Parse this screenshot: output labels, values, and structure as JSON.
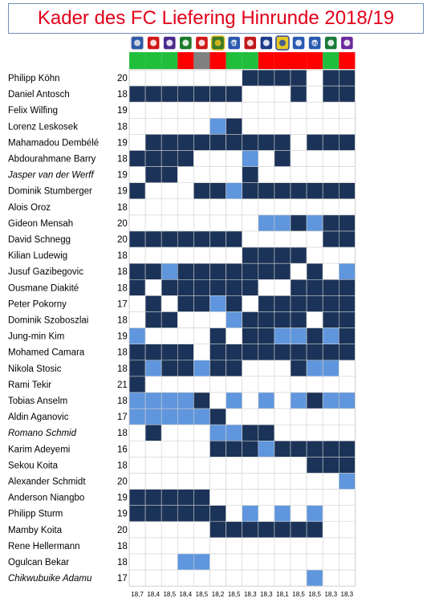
{
  "chart_data": {
    "type": "heatmap",
    "title": "Kader des FC Liefering Hinrunde 2018/19",
    "colors": {
      "played_full": "#1b3358",
      "played_partial": "#5f96dd",
      "not_played": "#ffffff",
      "win": "#1fbf3c",
      "loss": "#ff0000",
      "draw": "#808080"
    },
    "matches": [
      {
        "date": "18,7",
        "result": "win",
        "badge_colors": [
          "#2d5aa8",
          "#e8e8e8"
        ],
        "badge_text": ""
      },
      {
        "date": "18,4",
        "result": "win",
        "badge_colors": [
          "#d01818",
          "#ffffff"
        ],
        "badge_text": ""
      },
      {
        "date": "18,5",
        "result": "win",
        "badge_colors": [
          "#4a2a8c",
          "#ffffff"
        ],
        "badge_text": ""
      },
      {
        "date": "18,4",
        "result": "loss",
        "badge_colors": [
          "#1a7a2a",
          "#ffffff"
        ],
        "badge_text": ""
      },
      {
        "date": "18,5",
        "result": "draw",
        "badge_colors": [
          "#d01818",
          "#ffffff"
        ],
        "badge_text": ""
      },
      {
        "date": "18,2",
        "result": "loss",
        "badge_colors": [
          "#3a7a2a",
          "#e8c020"
        ],
        "badge_text": ""
      },
      {
        "date": "18,5",
        "result": "win",
        "badge_colors": [
          "#2a5ab0",
          "#ffffff"
        ],
        "badge_text": "SKN"
      },
      {
        "date": "18,3",
        "result": "win",
        "badge_colors": [
          "#c01818",
          "#ffffff"
        ],
        "badge_text": ""
      },
      {
        "date": "18,3",
        "result": "loss",
        "badge_colors": [
          "#1a3a8a",
          "#ffffff"
        ],
        "badge_text": ""
      },
      {
        "date": "18,1",
        "result": "loss",
        "badge_colors": [
          "#e8c820",
          "#2a4aa0"
        ],
        "badge_text": ""
      },
      {
        "date": "18,5",
        "result": "loss",
        "badge_colors": [
          "#2a5ab0",
          "#ffffff"
        ],
        "badge_text": ""
      },
      {
        "date": "18,5",
        "result": "loss",
        "badge_colors": [
          "#2a5ab0",
          "#ffffff"
        ],
        "badge_text": "FAC"
      },
      {
        "date": "18,3",
        "result": "win",
        "badge_colors": [
          "#1a7a3a",
          "#ffffff"
        ],
        "badge_text": ""
      },
      {
        "date": "18,3",
        "result": "loss",
        "badge_colors": [
          "#6a2a9c",
          "#ffffff"
        ],
        "badge_text": ""
      }
    ],
    "players": [
      {
        "name": "Philipp Köhn",
        "italic": false,
        "age": 20,
        "cells": "00000002222022"
      },
      {
        "name": "Daniel Antosch",
        "italic": false,
        "age": 18,
        "cells": "22222220002022"
      },
      {
        "name": "Felix Wilfing",
        "italic": false,
        "age": 19,
        "cells": "00000000000000"
      },
      {
        "name": "Lorenz Leskosek",
        "italic": false,
        "age": 18,
        "cells": "00000120000000"
      },
      {
        "name": "Mahamadou Dembélé",
        "italic": false,
        "age": 19,
        "cells": "02222222220222"
      },
      {
        "name": "Abdourahmane Barry",
        "italic": false,
        "age": 18,
        "cells": "22220001020000"
      },
      {
        "name": "Jasper van der Werff",
        "italic": true,
        "age": 19,
        "cells": "02200002000000"
      },
      {
        "name": "Dominik Stumberger",
        "italic": false,
        "age": 19,
        "cells": "20002212222222"
      },
      {
        "name": "Alois Oroz",
        "italic": false,
        "age": 18,
        "cells": "00000000000000"
      },
      {
        "name": "Gideon Mensah",
        "italic": false,
        "age": 20,
        "cells": "00000000112122"
      },
      {
        "name": "David Schnegg",
        "italic": false,
        "age": 20,
        "cells": "22222220000022"
      },
      {
        "name": "Kilian Ludewig",
        "italic": false,
        "age": 18,
        "cells": "00000002222000"
      },
      {
        "name": "Jusuf Gazibegovic",
        "italic": false,
        "age": 18,
        "cells": "22122222220201"
      },
      {
        "name": "Ousmane Diakité",
        "italic": false,
        "age": 18,
        "cells": "20222222002222"
      },
      {
        "name": "Peter Pokorny",
        "italic": false,
        "age": 17,
        "cells": "02022120222222"
      },
      {
        "name": "Dominik Szoboszlai",
        "italic": false,
        "age": 18,
        "cells": "02200012222022"
      },
      {
        "name": "Jung-min Kim",
        "italic": false,
        "age": 19,
        "cells": "10000202211212"
      },
      {
        "name": "Mohamed Camara",
        "italic": false,
        "age": 18,
        "cells": "22220222222222"
      },
      {
        "name": "Nikola Stosic",
        "italic": false,
        "age": 18,
        "cells": "21221220002110"
      },
      {
        "name": "Rami Tekir",
        "italic": false,
        "age": 21,
        "cells": "20000000000000"
      },
      {
        "name": "Tobias Anselm",
        "italic": false,
        "age": 18,
        "cells": "11112010101211"
      },
      {
        "name": "Aldin Aganovic",
        "italic": false,
        "age": 17,
        "cells": "11111200000000"
      },
      {
        "name": "Romano Schmid",
        "italic": true,
        "age": 18,
        "cells": "02000112200000"
      },
      {
        "name": "Karim Adeyemi",
        "italic": false,
        "age": 16,
        "cells": "00000222122222"
      },
      {
        "name": "Sekou Koita",
        "italic": false,
        "age": 18,
        "cells": "00000000000222"
      },
      {
        "name": "Alexander Schmidt",
        "italic": false,
        "age": 20,
        "cells": "00000000000001"
      },
      {
        "name": "Anderson Niangbo",
        "italic": false,
        "age": 19,
        "cells": "22222000000000"
      },
      {
        "name": "Philipp Sturm",
        "italic": false,
        "age": 19,
        "cells": "22222201010100"
      },
      {
        "name": "Mamby Koita",
        "italic": false,
        "age": 20,
        "cells": "00000222222200"
      },
      {
        "name": "Rene Hellermann",
        "italic": false,
        "age": 18,
        "cells": "00000000000000"
      },
      {
        "name": "Ogulcan Bekar",
        "italic": false,
        "age": 18,
        "cells": "00011000000000"
      },
      {
        "name": "Chikwubuike Adamu",
        "italic": true,
        "age": 17,
        "cells": "00000000000100"
      }
    ]
  }
}
